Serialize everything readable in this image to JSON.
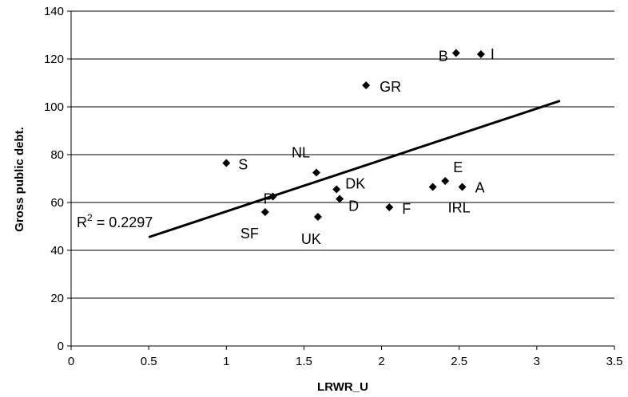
{
  "chart_data": {
    "type": "scatter",
    "title": "",
    "xlabel": "LRWR_U",
    "ylabel": "Gross public debt.",
    "xlim": [
      0,
      3.5
    ],
    "ylim": [
      0,
      140
    ],
    "xticks": [
      "0",
      "0.5",
      "1",
      "1.5",
      "2",
      "2.5",
      "3",
      "3.5"
    ],
    "yticks": [
      "0",
      "20",
      "40",
      "60",
      "80",
      "100",
      "120",
      "140"
    ],
    "grid": "horizontal",
    "legend": "none",
    "marker": "diamond",
    "points": [
      {
        "label": "B",
        "x": 2.48,
        "y": 122.5
      },
      {
        "label": "I",
        "x": 2.64,
        "y": 122
      },
      {
        "label": "GR",
        "x": 1.9,
        "y": 109
      },
      {
        "label": "S",
        "x": 1.0,
        "y": 76.5
      },
      {
        "label": "NL",
        "x": 1.58,
        "y": 72.5
      },
      {
        "label": "E",
        "x": 2.41,
        "y": 69
      },
      {
        "label": "A",
        "x": 2.52,
        "y": 66.5
      },
      {
        "label": "IRL",
        "x": 2.33,
        "y": 66.5
      },
      {
        "label": "DK",
        "x": 1.71,
        "y": 65.5
      },
      {
        "label": "P",
        "x": 1.3,
        "y": 62.5
      },
      {
        "label": "D",
        "x": 1.73,
        "y": 61.5
      },
      {
        "label": "F",
        "x": 2.05,
        "y": 58
      },
      {
        "label": "SF",
        "x": 1.25,
        "y": 56
      },
      {
        "label": "UK",
        "x": 1.59,
        "y": 54
      }
    ],
    "trendline": {
      "type": "linear",
      "x": [
        0.5,
        3.15
      ],
      "y": [
        45.5,
        102.5
      ]
    },
    "annotation": {
      "prefix": "R",
      "sup": "2",
      "text": " = 0.2297"
    }
  }
}
